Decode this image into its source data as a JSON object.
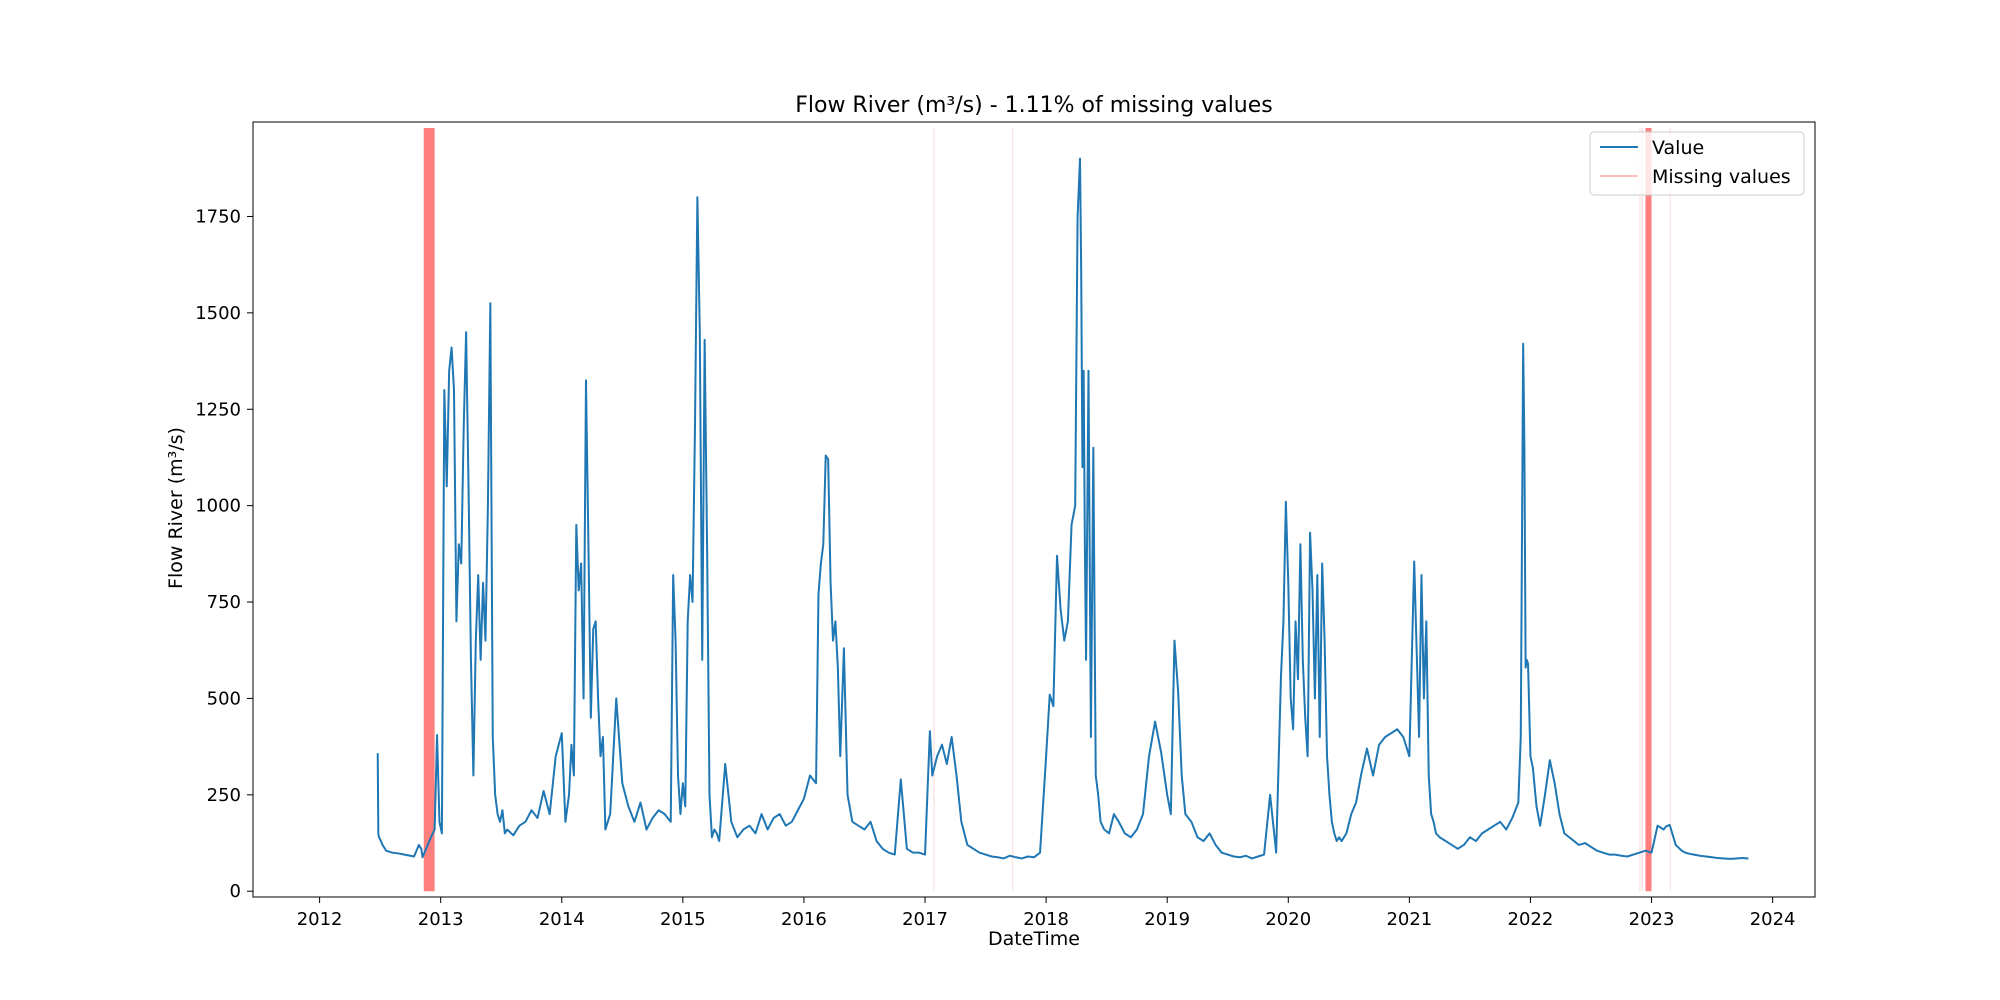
{
  "chart_data": {
    "type": "line",
    "title": "Flow River (m³/s) - 1.11% of missing values",
    "xlabel": "DateTime",
    "ylabel": "Flow River (m³/s)",
    "xlim": [
      2011.45,
      2024.35
    ],
    "ylim": [
      -15,
      1995
    ],
    "x_ticks": [
      2012,
      2013,
      2014,
      2015,
      2016,
      2017,
      2018,
      2019,
      2020,
      2021,
      2022,
      2023,
      2024
    ],
    "x_tick_labels": [
      "2012",
      "2013",
      "2014",
      "2015",
      "2016",
      "2017",
      "2018",
      "2019",
      "2020",
      "2021",
      "2022",
      "2023",
      "2024"
    ],
    "y_ticks": [
      0,
      250,
      500,
      750,
      1000,
      1250,
      1500,
      1750
    ],
    "y_tick_labels": [
      "0",
      "250",
      "500",
      "750",
      "1000",
      "1250",
      "1500",
      "1750"
    ],
    "grid": false,
    "legend_position": "top-right",
    "series": [
      {
        "name": "Value",
        "color": "#1f77b4",
        "x": [
          2012.48,
          2012.485,
          2012.49,
          2012.5,
          2012.52,
          2012.55,
          2012.6,
          2012.65,
          2012.7,
          2012.75,
          2012.78,
          2012.82,
          2012.84,
          2012.85,
          2012.92,
          2012.95,
          2012.97,
          2012.99,
          2013.01,
          2013.03,
          2013.05,
          2013.07,
          2013.09,
          2013.11,
          2013.13,
          2013.15,
          2013.17,
          2013.19,
          2013.21,
          2013.23,
          2013.25,
          2013.27,
          2013.29,
          2013.31,
          2013.33,
          2013.35,
          2013.37,
          2013.39,
          2013.41,
          2013.43,
          2013.45,
          2013.47,
          2013.49,
          2013.51,
          2013.53,
          2013.55,
          2013.6,
          2013.65,
          2013.7,
          2013.75,
          2013.8,
          2013.85,
          2013.9,
          2013.95,
          2014.0,
          2014.03,
          2014.06,
          2014.08,
          2014.1,
          2014.12,
          2014.14,
          2014.16,
          2014.18,
          2014.2,
          2014.22,
          2014.24,
          2014.26,
          2014.28,
          2014.3,
          2014.32,
          2014.34,
          2014.36,
          2014.4,
          2014.45,
          2014.5,
          2014.55,
          2014.6,
          2014.65,
          2014.7,
          2014.75,
          2014.8,
          2014.85,
          2014.9,
          2014.92,
          2014.94,
          2014.96,
          2014.98,
          2015.0,
          2015.02,
          2015.04,
          2015.06,
          2015.08,
          2015.1,
          2015.12,
          2015.14,
          2015.16,
          2015.18,
          2015.2,
          2015.22,
          2015.24,
          2015.26,
          2015.28,
          2015.3,
          2015.35,
          2015.4,
          2015.45,
          2015.5,
          2015.55,
          2015.6,
          2015.65,
          2015.7,
          2015.75,
          2015.8,
          2015.85,
          2015.9,
          2015.95,
          2016.0,
          2016.05,
          2016.1,
          2016.12,
          2016.14,
          2016.16,
          2016.18,
          2016.2,
          2016.22,
          2016.24,
          2016.26,
          2016.28,
          2016.3,
          2016.33,
          2016.36,
          2016.4,
          2016.45,
          2016.5,
          2016.55,
          2016.6,
          2016.65,
          2016.7,
          2016.75,
          2016.8,
          2016.85,
          2016.9,
          2016.95,
          2017.0,
          2017.04,
          2017.06,
          2017.1,
          2017.14,
          2017.18,
          2017.22,
          2017.26,
          2017.3,
          2017.35,
          2017.4,
          2017.45,
          2017.5,
          2017.55,
          2017.6,
          2017.65,
          2017.7,
          2017.75,
          2017.8,
          2017.85,
          2017.9,
          2017.95,
          2018.0,
          2018.03,
          2018.06,
          2018.09,
          2018.12,
          2018.15,
          2018.18,
          2018.21,
          2018.24,
          2018.26,
          2018.28,
          2018.29,
          2018.3,
          2018.31,
          2018.32,
          2018.33,
          2018.35,
          2018.37,
          2018.39,
          2018.41,
          2018.43,
          2018.45,
          2018.48,
          2018.52,
          2018.56,
          2018.6,
          2018.65,
          2018.7,
          2018.75,
          2018.8,
          2018.85,
          2018.9,
          2018.95,
          2019.0,
          2019.03,
          2019.06,
          2019.09,
          2019.12,
          2019.15,
          2019.2,
          2019.25,
          2019.3,
          2019.35,
          2019.4,
          2019.45,
          2019.5,
          2019.55,
          2019.6,
          2019.65,
          2019.7,
          2019.75,
          2019.8,
          2019.85,
          2019.9,
          2019.94,
          2019.96,
          2019.98,
          2020.0,
          2020.02,
          2020.04,
          2020.06,
          2020.08,
          2020.1,
          2020.12,
          2020.14,
          2020.16,
          2020.18,
          2020.2,
          2020.22,
          2020.24,
          2020.26,
          2020.28,
          2020.3,
          2020.32,
          2020.34,
          2020.36,
          2020.38,
          2020.4,
          2020.42,
          2020.44,
          2020.48,
          2020.52,
          2020.56,
          2020.6,
          2020.65,
          2020.7,
          2020.75,
          2020.8,
          2020.85,
          2020.9,
          2020.95,
          2021.0,
          2021.04,
          2021.08,
          2021.1,
          2021.12,
          2021.14,
          2021.16,
          2021.18,
          2021.2,
          2021.22,
          2021.25,
          2021.3,
          2021.35,
          2021.4,
          2021.45,
          2021.5,
          2021.55,
          2021.6,
          2021.65,
          2021.7,
          2021.75,
          2021.8,
          2021.85,
          2021.9,
          2021.92,
          2021.94,
          2021.95,
          2021.96,
          2021.97,
          2021.98,
          2022.0,
          2022.02,
          2022.05,
          2022.08,
          2022.12,
          2022.16,
          2022.2,
          2022.24,
          2022.28,
          2022.32,
          2022.36,
          2022.4,
          2022.45,
          2022.5,
          2022.55,
          2022.6,
          2022.65,
          2022.7,
          2022.75,
          2022.8,
          2022.85,
          2022.9,
          2022.95,
          2023.0,
          2023.05,
          2023.1,
          2023.12,
          2023.15,
          2023.2,
          2023.25,
          2023.28,
          2023.3,
          2023.35,
          2023.4,
          2023.45,
          2023.5,
          2023.55,
          2023.6,
          2023.65,
          2023.7,
          2023.75,
          2023.8
        ],
        "y": [
          358,
          150,
          140,
          135,
          120,
          105,
          100,
          98,
          95,
          92,
          90,
          120,
          110,
          88,
          140,
          160,
          405,
          180,
          150,
          1300,
          1050,
          1350,
          1410,
          1300,
          700,
          900,
          850,
          1200,
          1450,
          1050,
          600,
          300,
          650,
          820,
          600,
          800,
          650,
          1000,
          1525,
          400,
          250,
          200,
          180,
          210,
          150,
          160,
          145,
          170,
          180,
          210,
          190,
          260,
          200,
          350,
          410,
          180,
          250,
          380,
          300,
          950,
          780,
          850,
          500,
          1325,
          900,
          450,
          680,
          700,
          500,
          350,
          400,
          160,
          200,
          500,
          280,
          220,
          180,
          230,
          160,
          190,
          210,
          200,
          180,
          820,
          650,
          300,
          200,
          280,
          220,
          700,
          820,
          750,
          1200,
          1800,
          1450,
          600,
          1430,
          900,
          250,
          140,
          160,
          150,
          130,
          330,
          180,
          140,
          160,
          170,
          150,
          200,
          160,
          190,
          200,
          170,
          180,
          210,
          240,
          300,
          280,
          770,
          850,
          900,
          1130,
          1120,
          800,
          650,
          700,
          580,
          350,
          630,
          250,
          180,
          170,
          160,
          180,
          130,
          110,
          100,
          95,
          290,
          110,
          100,
          100,
          95,
          415,
          300,
          350,
          380,
          330,
          400,
          300,
          180,
          120,
          110,
          100,
          95,
          90,
          88,
          85,
          92,
          88,
          85,
          90,
          88,
          100,
          350,
          510,
          480,
          870,
          730,
          650,
          700,
          950,
          1000,
          1750,
          1900,
          1600,
          1100,
          1350,
          900,
          600,
          1350,
          400,
          1150,
          300,
          250,
          180,
          160,
          150,
          200,
          180,
          150,
          140,
          160,
          200,
          350,
          440,
          360,
          250,
          200,
          650,
          520,
          300,
          200,
          180,
          140,
          130,
          150,
          120,
          100,
          95,
          90,
          88,
          92,
          85,
          90,
          95,
          250,
          100,
          560,
          700,
          1010,
          800,
          500,
          420,
          700,
          550,
          900,
          600,
          450,
          350,
          930,
          780,
          500,
          820,
          400,
          850,
          650,
          350,
          250,
          180,
          150,
          130,
          140,
          130,
          150,
          200,
          230,
          300,
          370,
          300,
          380,
          400,
          410,
          420,
          400,
          350,
          855,
          400,
          820,
          500,
          700,
          300,
          200,
          180,
          150,
          140,
          130,
          120,
          110,
          120,
          140,
          130,
          150,
          160,
          170,
          180,
          160,
          190,
          230,
          400,
          1420,
          1150,
          580,
          600,
          590,
          350,
          320,
          220,
          170,
          250,
          340,
          280,
          200,
          150,
          140,
          130,
          120,
          125,
          115,
          105,
          100,
          95,
          95,
          92,
          90,
          95,
          100,
          105,
          100,
          170,
          160,
          168,
          172,
          120,
          105,
          100,
          98,
          95,
          92,
          90,
          88,
          86,
          85,
          84,
          85,
          86,
          85
        ]
      },
      {
        "name": "Missing values",
        "color": "#ff0000",
        "spans": [
          [
            2012.86,
            2012.95
          ],
          [
            2017.07,
            2017.072
          ],
          [
            2017.72,
            2017.722
          ],
          [
            2022.9,
            2022.905
          ],
          [
            2022.92,
            2022.93
          ],
          [
            2022.95,
            2023.0
          ],
          [
            2023.15,
            2023.152
          ]
        ]
      }
    ]
  }
}
